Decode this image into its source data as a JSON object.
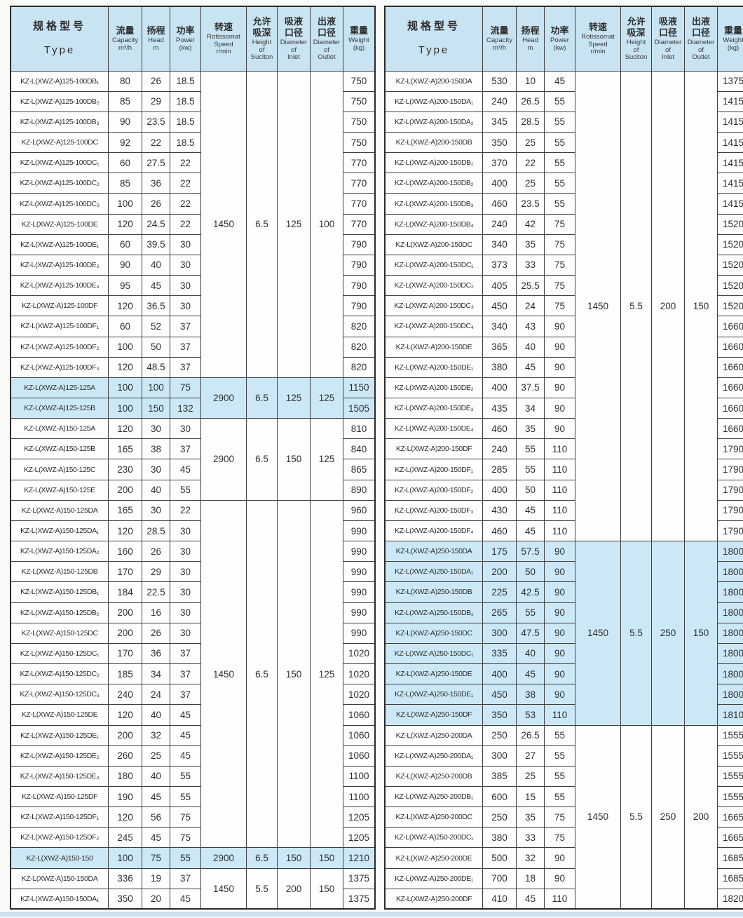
{
  "colors": {
    "header_bg": "#c8e3f1",
    "highlight_bg": "#cce8f6",
    "bottom_band": "#cfe3ee",
    "border": "#3f3f3f"
  },
  "header": {
    "columns": [
      {
        "id": "type",
        "cn": [
          "规格型号"
        ],
        "en": [
          "Type"
        ]
      },
      {
        "id": "capacity",
        "cn": [
          "流量"
        ],
        "en": [
          "Capacity",
          "m³/h"
        ]
      },
      {
        "id": "head",
        "cn": [
          "扬程"
        ],
        "en": [
          "Head",
          "m"
        ]
      },
      {
        "id": "power",
        "cn": [
          "功率"
        ],
        "en": [
          "Power",
          "(kw)"
        ]
      },
      {
        "id": "speed",
        "cn": [
          "转速"
        ],
        "en": [
          "Rotissomat",
          "Speed",
          "r/min"
        ]
      },
      {
        "id": "suction",
        "cn": [
          "允许",
          "吸深"
        ],
        "en": [
          "Height",
          "of",
          "Suciton"
        ]
      },
      {
        "id": "inlet",
        "cn": [
          "吸液",
          "口径"
        ],
        "en": [
          "Diameter",
          "of",
          "Inlet"
        ]
      },
      {
        "id": "outlet",
        "cn": [
          "出液",
          "口径"
        ],
        "en": [
          "Diameter",
          "of",
          "Outlet"
        ]
      },
      {
        "id": "weight",
        "cn": [
          "重量"
        ],
        "en": [
          "Weight",
          "(kg)"
        ]
      }
    ]
  },
  "row_fields": [
    "type",
    "capacity",
    "head",
    "power",
    "weight"
  ],
  "left_table": {
    "groups": [
      {
        "speed": "1450",
        "suction": "6.5",
        "inlet": "125",
        "outlet": "100",
        "highlight": false,
        "rows": [
          [
            "KZ-L(XWZ-A)125-100DB₁",
            "80",
            "26",
            "18.5",
            "750"
          ],
          [
            "KZ-L(XWZ-A)125-100DB₂",
            "85",
            "29",
            "18.5",
            "750"
          ],
          [
            "KZ-L(XWZ-A)125-100DB₃",
            "90",
            "23.5",
            "18.5",
            "750"
          ],
          [
            "KZ-L(XWZ-A)125-100DC",
            "92",
            "22",
            "18.5",
            "750"
          ],
          [
            "KZ-L(XWZ-A)125-100DC₁",
            "60",
            "27.5",
            "22",
            "770"
          ],
          [
            "KZ-L(XWZ-A)125-100DC₂",
            "85",
            "36",
            "22",
            "770"
          ],
          [
            "KZ-L(XWZ-A)125-100DC₃",
            "100",
            "26",
            "22",
            "770"
          ],
          [
            "KZ-L(XWZ-A)125-100DE",
            "120",
            "24.5",
            "22",
            "770"
          ],
          [
            "KZ-L(XWZ-A)125-100DE₁",
            "60",
            "39.5",
            "30",
            "790"
          ],
          [
            "KZ-L(XWZ-A)125-100DE₂",
            "90",
            "40",
            "30",
            "790"
          ],
          [
            "KZ-L(XWZ-A)125-100DE₃",
            "95",
            "45",
            "30",
            "790"
          ],
          [
            "KZ-L(XWZ-A)125-100DF",
            "120",
            "36.5",
            "30",
            "790"
          ],
          [
            "KZ-L(XWZ-A)125-100DF₁",
            "60",
            "52",
            "37",
            "820"
          ],
          [
            "KZ-L(XWZ-A)125-100DF₂",
            "100",
            "50",
            "37",
            "820"
          ],
          [
            "KZ-L(XWZ-A)125-100DF₃",
            "120",
            "48.5",
            "37",
            "820"
          ]
        ]
      },
      {
        "speed": "2900",
        "suction": "6.5",
        "inlet": "125",
        "outlet": "125",
        "highlight": true,
        "rows": [
          [
            "KZ-L(XWZ-A)125-125A",
            "100",
            "100",
            "75",
            "1150"
          ],
          [
            "KZ-L(XWZ-A)125-125B",
            "100",
            "150",
            "132",
            "1505"
          ]
        ]
      },
      {
        "speed": "2900",
        "suction": "6.5",
        "inlet": "150",
        "outlet": "125",
        "highlight": false,
        "rows": [
          [
            "KZ-L(XWZ-A)150-125A",
            "120",
            "30",
            "30",
            "810"
          ],
          [
            "KZ-L(XWZ-A)150-125B",
            "165",
            "38",
            "37",
            "840"
          ],
          [
            "KZ-L(XWZ-A)150-125C",
            "230",
            "30",
            "45",
            "865"
          ],
          [
            "KZ-L(XWZ-A)150-125E",
            "200",
            "40",
            "55",
            "890"
          ]
        ]
      },
      {
        "speed": "1450",
        "suction": "6.5",
        "inlet": "150",
        "outlet": "125",
        "highlight": false,
        "rows": [
          [
            "KZ-L(XWZ-A)150-125DA",
            "165",
            "30",
            "22",
            "960"
          ],
          [
            "KZ-L(XWZ-A)150-125DA₁",
            "120",
            "28.5",
            "30",
            "990"
          ],
          [
            "KZ-L(XWZ-A)150-125DA₂",
            "160",
            "26",
            "30",
            "990"
          ],
          [
            "KZ-L(XWZ-A)150-125DB",
            "170",
            "29",
            "30",
            "990"
          ],
          [
            "KZ-L(XWZ-A)150-125DB₁",
            "184",
            "22.5",
            "30",
            "990"
          ],
          [
            "KZ-L(XWZ-A)150-125DB₂",
            "200",
            "16",
            "30",
            "990"
          ],
          [
            "KZ-L(XWZ-A)150-125DC",
            "200",
            "26",
            "30",
            "990"
          ],
          [
            "KZ-L(XWZ-A)150-125DC₁",
            "170",
            "36",
            "37",
            "1020"
          ],
          [
            "KZ-L(XWZ-A)150-125DC₂",
            "185",
            "34",
            "37",
            "1020"
          ],
          [
            "KZ-L(XWZ-A)150-125DC₃",
            "240",
            "24",
            "37",
            "1020"
          ],
          [
            "KZ-L(XWZ-A)150-125DE",
            "120",
            "40",
            "45",
            "1060"
          ],
          [
            "KZ-L(XWZ-A)150-125DE₁",
            "200",
            "32",
            "45",
            "1060"
          ],
          [
            "KZ-L(XWZ-A)150-125DE₂",
            "260",
            "25",
            "45",
            "1060"
          ],
          [
            "KZ-L(XWZ-A)150-125DE₃",
            "180",
            "40",
            "55",
            "1100"
          ],
          [
            "KZ-L(XWZ-A)150-125DF",
            "190",
            "45",
            "55",
            "1100"
          ],
          [
            "KZ-L(XWZ-A)150-125DF₁",
            "120",
            "56",
            "75",
            "1205"
          ],
          [
            "KZ-L(XWZ-A)150-125DF₂",
            "245",
            "45",
            "75",
            "1205"
          ]
        ]
      },
      {
        "speed": "2900",
        "suction": "6.5",
        "inlet": "150",
        "outlet": "150",
        "highlight": true,
        "rows": [
          [
            "KZ-L(XWZ-A)150-150",
            "100",
            "75",
            "55",
            "1210"
          ]
        ]
      },
      {
        "speed": "1450",
        "suction": "5.5",
        "inlet": "200",
        "outlet": "150",
        "highlight": false,
        "rows": [
          [
            "KZ-L(XWZ-A)150-150DA",
            "336",
            "19",
            "37",
            "1375"
          ],
          [
            "KZ-L(XWZ-A)150-150DA₁",
            "350",
            "20",
            "45",
            "1375"
          ]
        ]
      }
    ]
  },
  "right_table": {
    "groups": [
      {
        "speed": "1450",
        "suction": "5.5",
        "inlet": "200",
        "outlet": "150",
        "highlight": false,
        "rows": [
          [
            "KZ-L(XWZ-A)200-150DA",
            "530",
            "10",
            "45",
            "1375"
          ],
          [
            "KZ-L(XWZ-A)200-150DA₁",
            "240",
            "26.5",
            "55",
            "1415"
          ],
          [
            "KZ-L(XWZ-A)200-150DA₂",
            "345",
            "28.5",
            "55",
            "1415"
          ],
          [
            "KZ-L(XWZ-A)200-150DB",
            "350",
            "25",
            "55",
            "1415"
          ],
          [
            "KZ-L(XWZ-A)200-150DB₁",
            "370",
            "22",
            "55",
            "1415"
          ],
          [
            "KZ-L(XWZ-A)200-150DB₂",
            "400",
            "25",
            "55",
            "1415"
          ],
          [
            "KZ-L(XWZ-A)200-150DB₃",
            "460",
            "23.5",
            "55",
            "1415"
          ],
          [
            "KZ-L(XWZ-A)200-150DB₄",
            "240",
            "42",
            "75",
            "1520"
          ],
          [
            "KZ-L(XWZ-A)200-150DC",
            "340",
            "35",
            "75",
            "1520"
          ],
          [
            "KZ-L(XWZ-A)200-150DC₁",
            "373",
            "33",
            "75",
            "1520"
          ],
          [
            "KZ-L(XWZ-A)200-150DC₂",
            "405",
            "25.5",
            "75",
            "1520"
          ],
          [
            "KZ-L(XWZ-A)200-150DC₃",
            "450",
            "24",
            "75",
            "1520"
          ],
          [
            "KZ-L(XWZ-A)200-150DC₄",
            "340",
            "43",
            "90",
            "1660"
          ],
          [
            "KZ-L(XWZ-A)200-150DE",
            "365",
            "40",
            "90",
            "1660"
          ],
          [
            "KZ-L(XWZ-A)200-150DE₁",
            "380",
            "45",
            "90",
            "1660"
          ],
          [
            "KZ-L(XWZ-A)200-150DE₂",
            "400",
            "37.5",
            "90",
            "1660"
          ],
          [
            "KZ-L(XWZ-A)200-150DE₃",
            "435",
            "34",
            "90",
            "1660"
          ],
          [
            "KZ-L(XWZ-A)200-150DE₄",
            "460",
            "35",
            "90",
            "1660"
          ],
          [
            "KZ-L(XWZ-A)200-150DF",
            "240",
            "55",
            "110",
            "1790"
          ],
          [
            "KZ-L(XWZ-A)200-150DF₁",
            "285",
            "55",
            "110",
            "1790"
          ],
          [
            "KZ-L(XWZ-A)200-150DF₂",
            "400",
            "50",
            "110",
            "1790"
          ],
          [
            "KZ-L(XWZ-A)200-150DF₃",
            "430",
            "45",
            "110",
            "1790"
          ],
          [
            "KZ-L(XWZ-A)200-150DF₄",
            "460",
            "45",
            "110",
            "1790"
          ]
        ]
      },
      {
        "speed": "1450",
        "suction": "5.5",
        "inlet": "250",
        "outlet": "150",
        "highlight": true,
        "rows": [
          [
            "KZ-L(XWZ-A)250-150DA",
            "175",
            "57.5",
            "90",
            "1800"
          ],
          [
            "KZ-L(XWZ-A)250-150DA₁",
            "200",
            "50",
            "90",
            "1800"
          ],
          [
            "KZ-L(XWZ-A)250-150DB",
            "225",
            "42.5",
            "90",
            "1800"
          ],
          [
            "KZ-L(XWZ-A)250-150DB₁",
            "265",
            "55",
            "90",
            "1800"
          ],
          [
            "KZ-L(XWZ-A)250-150DC",
            "300",
            "47.5",
            "90",
            "1800"
          ],
          [
            "KZ-L(XWZ-A)250-150DC₁",
            "335",
            "40",
            "90",
            "1800"
          ],
          [
            "KZ-L(XWZ-A)250-150DE",
            "400",
            "45",
            "90",
            "1800"
          ],
          [
            "KZ-L(XWZ-A)250-150DE₁",
            "450",
            "38",
            "90",
            "1800"
          ],
          [
            "KZ-L(XWZ-A)250-150DF",
            "350",
            "53",
            "110",
            "1810"
          ]
        ]
      },
      {
        "speed": "1450",
        "suction": "5.5",
        "inlet": "250",
        "outlet": "200",
        "highlight": false,
        "rows": [
          [
            "KZ-L(XWZ-A)250-200DA",
            "250",
            "26.5",
            "55",
            "1555"
          ],
          [
            "KZ-L(XWZ-A)250-200DA₁",
            "300",
            "27",
            "55",
            "1555"
          ],
          [
            "KZ-L(XWZ-A)250-200DB",
            "385",
            "25",
            "55",
            "1555"
          ],
          [
            "KZ-L(XWZ-A)250-200DB₁",
            "600",
            "15",
            "55",
            "1555"
          ],
          [
            "KZ-L(XWZ-A)250-200DC",
            "250",
            "35",
            "75",
            "1665"
          ],
          [
            "KZ-L(XWZ-A)250-200DC₁",
            "380",
            "33",
            "75",
            "1665"
          ],
          [
            "KZ-L(XWZ-A)250-200DE",
            "500",
            "32",
            "90",
            "1685"
          ],
          [
            "KZ-L(XWZ-A)250-200DE₁",
            "700",
            "18",
            "90",
            "1685"
          ],
          [
            "KZ-L(XWZ-A)250-200DF",
            "410",
            "45",
            "110",
            "1820"
          ]
        ]
      }
    ]
  }
}
